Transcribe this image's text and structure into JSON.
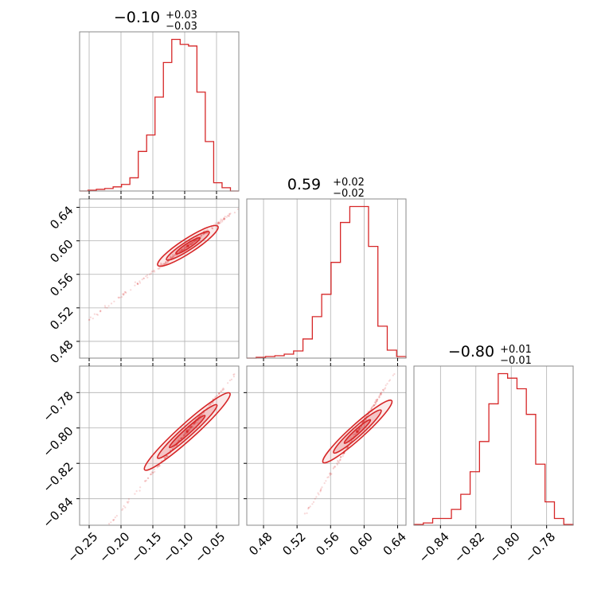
{
  "chart_data": {
    "type": "corner",
    "color": "#d62728",
    "grid": true,
    "parameters": [
      {
        "title_main": "−0.10",
        "title_plus": "+0.03",
        "title_minus": "−0.03",
        "range": [
          -0.265,
          -0.015
        ],
        "ticks": [
          -0.25,
          -0.2,
          -0.15,
          -0.1,
          -0.05
        ],
        "tick_labels": [
          "−0.25",
          "−0.20",
          "−0.15",
          "−0.10",
          "−0.05"
        ]
      },
      {
        "title_main": "0.59",
        "title_plus": "+0.02",
        "title_minus": "−0.02",
        "range": [
          0.46,
          0.65
        ],
        "ticks": [
          0.48,
          0.52,
          0.56,
          0.6,
          0.64
        ],
        "tick_labels": [
          "0.48",
          "0.52",
          "0.56",
          "0.60",
          "0.64"
        ]
      },
      {
        "title_main": "−0.80",
        "title_plus": "+0.01",
        "title_minus": "−0.01",
        "range": [
          -0.855,
          -0.765
        ],
        "ticks": [
          -0.84,
          -0.82,
          -0.8,
          -0.78
        ],
        "tick_labels": [
          "−0.84",
          "−0.82",
          "−0.80",
          "−0.78"
        ]
      }
    ],
    "histograms": [
      {
        "param": 0,
        "counts": [
          0,
          0.5,
          1,
          1.5,
          2.5,
          4,
          8,
          24,
          34,
          57,
          78,
          92,
          89,
          88,
          60,
          30,
          5,
          2,
          0
        ]
      },
      {
        "param": 1,
        "counts": [
          0,
          0.5,
          1,
          1.5,
          2.5,
          4.5,
          12,
          26,
          40,
          60,
          85,
          95,
          95,
          70,
          20,
          5,
          1
        ]
      },
      {
        "param": 2,
        "counts": [
          0.5,
          1.5,
          4.5,
          4.5,
          10.5,
          20.5,
          35.5,
          55.5,
          80.5,
          100.5,
          97.5,
          90.5,
          73.5,
          40.5,
          15.5,
          4.5,
          0.5
        ]
      }
    ],
    "pairs": [
      {
        "x": 0,
        "y": 1,
        "slope": 0.57,
        "center": [
          -0.095,
          0.594
        ]
      },
      {
        "x": 0,
        "y": 2,
        "slope": 0.43,
        "center": [
          -0.096,
          -0.802
        ]
      },
      {
        "x": 1,
        "y": 2,
        "slope": 0.75,
        "center": [
          0.592,
          -0.802
        ]
      }
    ]
  }
}
